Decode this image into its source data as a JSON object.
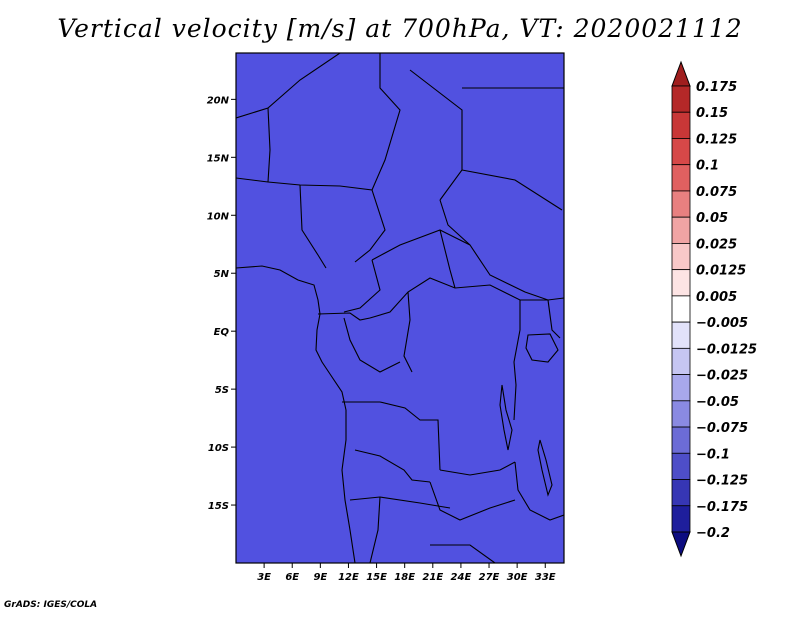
{
  "title": "Vertical velocity [m/s] at 700hPa, VT: 2020021112",
  "credit": "GrADS: IGES/COLA",
  "map": {
    "variable": "Vertical velocity",
    "units": "m/s",
    "level": "700hPa",
    "valid_time": "2020021112",
    "lon_range": [
      0,
      35
    ],
    "lat_range": [
      -20,
      24
    ],
    "lat_ticks": [
      {
        "value": 20,
        "label": "20N"
      },
      {
        "value": 15,
        "label": "15N"
      },
      {
        "value": 10,
        "label": "10N"
      },
      {
        "value": 5,
        "label": "5N"
      },
      {
        "value": 0,
        "label": "EQ"
      },
      {
        "value": -5,
        "label": "5S"
      },
      {
        "value": -10,
        "label": "10S"
      },
      {
        "value": -15,
        "label": "15S"
      }
    ],
    "lon_ticks": [
      {
        "value": 3,
        "label": "3E"
      },
      {
        "value": 6,
        "label": "6E"
      },
      {
        "value": 9,
        "label": "9E"
      },
      {
        "value": 12,
        "label": "12E"
      },
      {
        "value": 15,
        "label": "15E"
      },
      {
        "value": 18,
        "label": "18E"
      },
      {
        "value": 21,
        "label": "21E"
      },
      {
        "value": 24,
        "label": "24E"
      },
      {
        "value": 27,
        "label": "27E"
      },
      {
        "value": 30,
        "label": "30E"
      },
      {
        "value": 33,
        "label": "33E"
      }
    ]
  },
  "colorbar": {
    "levels": [
      "0.175",
      "0.15",
      "0.125",
      "0.1",
      "0.075",
      "0.05",
      "0.025",
      "0.0125",
      "0.005",
      "-0.005",
      "-0.0125",
      "-0.025",
      "-0.05",
      "-0.075",
      "-0.1",
      "-0.125",
      "-0.175",
      "-0.2"
    ],
    "colors": [
      "#a01e1e",
      "#b42828",
      "#c83737",
      "#d64848",
      "#e06060",
      "#e88080",
      "#f0a4a4",
      "#f8c8c8",
      "#fde4e4",
      "#ffffff",
      "#e2e2fa",
      "#c6c6f2",
      "#a8a8ec",
      "#8a8ae2",
      "#6c6cd6",
      "#4e4ec8",
      "#3636b4",
      "#1e1e9c",
      "#0c0c80"
    ]
  }
}
